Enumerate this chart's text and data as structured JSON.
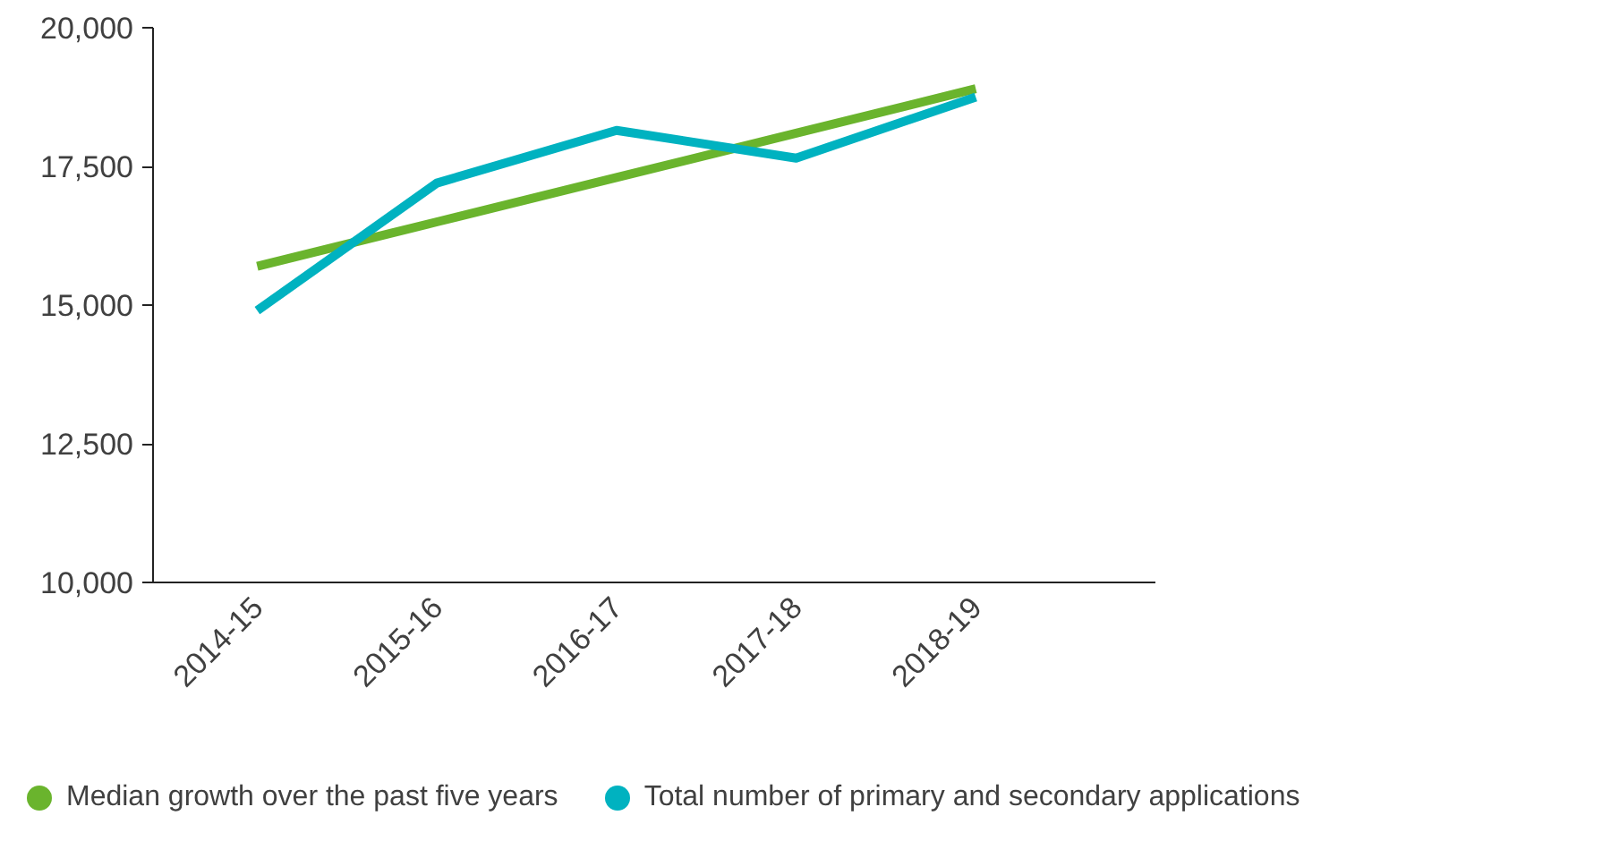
{
  "chart_data": {
    "type": "line",
    "categories": [
      "2014-15",
      "2015-16",
      "2016-17",
      "2017-18",
      "2018-19"
    ],
    "series": [
      {
        "name": "Median growth over the past five years",
        "color": "#6ab42d",
        "values": [
          15700,
          16500,
          17300,
          18100,
          18900
        ]
      },
      {
        "name": "Total number of primary and secondary applications",
        "color": "#00b2c0",
        "values": [
          14900,
          17200,
          18150,
          17650,
          18750
        ]
      }
    ],
    "ylim": [
      10000,
      20000
    ],
    "yticks": [
      {
        "value": 10000,
        "label": "10,000"
      },
      {
        "value": 12500,
        "label": "12,500"
      },
      {
        "value": 15000,
        "label": "15,000"
      },
      {
        "value": 17500,
        "label": "17,500"
      },
      {
        "value": 20000,
        "label": "20,000"
      }
    ],
    "grid": false,
    "legend": "bottom",
    "marker": "none",
    "line_style": "solid"
  }
}
